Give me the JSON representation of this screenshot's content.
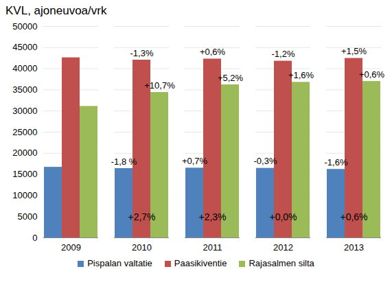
{
  "chart_data": {
    "type": "bar",
    "title": "KVL, ajoneuvoa/vrk",
    "categories": [
      "2009",
      "2010",
      "2011",
      "2012",
      "2013"
    ],
    "series": [
      {
        "name": "Pispalan valtatie",
        "color": "#4f81bd",
        "values": [
          16700,
          16400,
          16500,
          16450,
          16200
        ],
        "change_labels": [
          null,
          "-1,8 %",
          "+0,7%",
          "-0,3%",
          "-1,6%"
        ]
      },
      {
        "name": "Paasikiventie",
        "color": "#c0504d",
        "values": [
          42600,
          42050,
          42300,
          41800,
          42450
        ],
        "change_labels": [
          null,
          "-1,3%",
          "+0,6%",
          "-1,2%",
          "+1,5%"
        ]
      },
      {
        "name": "Rajasalmen silta",
        "color": "#9bbb59",
        "values": [
          31100,
          34400,
          36200,
          36800,
          37000
        ],
        "change_labels": [
          null,
          "+10,7%",
          "+5,2%",
          "+1,6%",
          "+0,6%"
        ]
      }
    ],
    "total_change_labels": [
      null,
      "+2,7%",
      "+2,3%",
      "+0,0%",
      "+0,6%"
    ],
    "ylim": [
      0,
      50000
    ],
    "yticks": [
      0,
      5000,
      10000,
      15000,
      20000,
      25000,
      30000,
      35000,
      40000,
      45000,
      50000
    ],
    "grid": true,
    "legend": "bottom"
  }
}
